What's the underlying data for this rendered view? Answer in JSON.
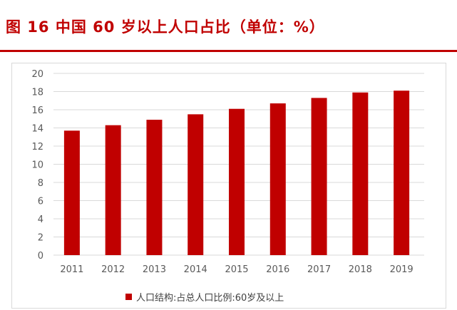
{
  "title": "图 16  中国 60 岁以上人口占比（单位：%）",
  "colors": {
    "accent": "#c00000",
    "grid": "#d9d9d9",
    "axis_text": "#595959"
  },
  "chart_data": {
    "type": "bar",
    "categories": [
      "2011",
      "2012",
      "2013",
      "2014",
      "2015",
      "2016",
      "2017",
      "2018",
      "2019"
    ],
    "series": [
      {
        "name": "人口结构:占总人口比例:60岁及以上",
        "values": [
          13.7,
          14.3,
          14.9,
          15.5,
          16.1,
          16.7,
          17.3,
          17.9,
          18.1
        ]
      }
    ],
    "yticks": [
      "0",
      "2",
      "4",
      "6",
      "8",
      "10",
      "12",
      "14",
      "16",
      "18",
      "20"
    ],
    "ylim": [
      0,
      20
    ],
    "grid": true,
    "legend_position": "bottom"
  }
}
